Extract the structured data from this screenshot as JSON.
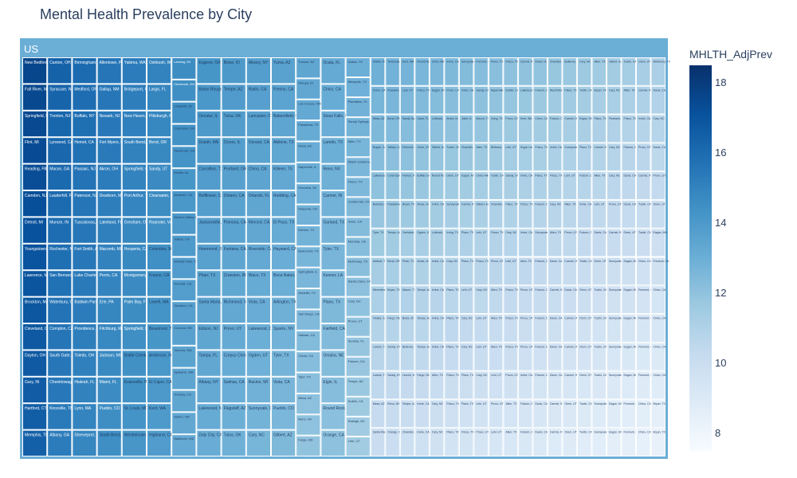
{
  "chart_data": {
    "type": "treemap",
    "title": "Mental Health Prevalence by City",
    "root_label": "US",
    "colorbar": {
      "title": "MHLTH_AdjPrev",
      "ticks": [
        8,
        10,
        12,
        14,
        16,
        18
      ],
      "range": [
        7.5,
        18.5
      ],
      "colorscale": [
        [
          0,
          "#f7fbff"
        ],
        [
          0.125,
          "#deebf7"
        ],
        [
          0.25,
          "#c6dbef"
        ],
        [
          0.375,
          "#9ecae1"
        ],
        [
          0.5,
          "#6baed6"
        ],
        [
          0.625,
          "#4292c6"
        ],
        [
          0.75,
          "#2171b5"
        ],
        [
          0.875,
          "#08519c"
        ],
        [
          1,
          "#08306b"
        ]
      ]
    },
    "columns": [
      {
        "value": 17.6,
        "label_size": 5,
        "cells": [
          "New Bedford, MA",
          "Fall River, MA",
          "Springfield, MA",
          "Flint, MI",
          "Reading, PA",
          "Camden, NJ",
          "Detroit, MI",
          "Youngstown, OH",
          "Lawrence, MA",
          "Brockton, MA",
          "Cleveland, OH",
          "Dayton, OH",
          "Gary, IN",
          "Hartford, CT",
          "Memphis, TN"
        ]
      },
      {
        "value": 16.4,
        "label_size": 5,
        "cells": [
          "Canton, OH",
          "Syracuse, NY",
          "Trenton, NJ",
          "Lynwood, CA",
          "Macon, GA",
          "Lauderhill, FL",
          "Muncie, IN",
          "Rochester, NY",
          "San Bernardino, CA",
          "Waterbury, CT",
          "Compton, CA",
          "South Gate, CA",
          "Cheektowaga, NY",
          "Knoxville, TN",
          "Albany, GA"
        ]
      },
      {
        "value": 16.0,
        "label_size": 5,
        "cells": [
          "Birmingham, AL",
          "Medford, OR",
          "Buffalo, NY",
          "Hemet, CA",
          "Passaic, NJ",
          "Paterson, NJ",
          "Tuscaloosa, AL",
          "Fort Smith, AR",
          "Lake Charles, LA",
          "Baldwin Park, CA",
          "Providence, RI",
          "Toledo, OH",
          "Hialeah, FL",
          "Lynn, MA",
          "Shreveport, LA"
        ]
      },
      {
        "value": 15.6,
        "label_size": 5,
        "cells": [
          "Allentown, PA",
          "Gallup, NM",
          "Newark, NJ",
          "Fort Myers, FL",
          "Akron, OH",
          "Dearborn, MI",
          "Lakeland, FL",
          "Macomb, MI",
          "Perris, CA",
          "Erie, PA",
          "Fitchburg, MA",
          "Jackson, MS",
          "Miami, FL",
          "Pueblo, CO",
          "South Bend, IN"
        ]
      },
      {
        "value": 15.3,
        "label_size": 5,
        "cells": [
          "Yakima, WA",
          "Bridgeport, CT",
          "New Haven, CT",
          "South Bend, IN",
          "Springfield, OH",
          "Port Arthur, TX",
          "Gresham, OR",
          "Hesperia, CA",
          "Montgomery, AL",
          "Palm Bay, FL",
          "Springfield, MO",
          "Battle Creek, MI",
          "Evansville, IN",
          "St. Louis, MO",
          "Westminster, CA"
        ]
      },
      {
        "value": 15.0,
        "label_size": 5,
        "cells": [
          "Oshkosh, WI",
          "Largo, FL",
          "Pittsburgh, PA",
          "Bend, OR",
          "Sandy, UT",
          "Clearwater, FL",
          "Roanoke, VA",
          "Columbia, SC",
          "Fresno, CA",
          "Lowell, MA",
          "Beaumont, TX",
          "Anderson, IN",
          "El Cajon, CA",
          "Kent, WA",
          "Highland, CA"
        ]
      },
      {
        "value": 14.6,
        "label_size": 4,
        "cells": [
          "Lansing, MI",
          "Cincinnati, OH",
          "Lafayette, IN",
          "Columbus, OH",
          "Savannah, GA",
          "Mobile, AL",
          "Modesto, CA",
          "Moreno Valley, CA",
          "Vallejo, CA",
          "Wichita Falls, TX",
          "Norwalk, CA",
          "Stockton, CA",
          "Concord, NH",
          "Tacoma, WA",
          "Spokane, WA",
          "Greeley, CO",
          "Salem, OR",
          "Baltimore, MD"
        ]
      },
      {
        "value": 14.2,
        "label_size": 5,
        "cells": [
          "Eugene, OR",
          "Baton Rouge, LA",
          "Decatur, IL",
          "Duluth, MN",
          "Carrollton, TX",
          "Bellflower, CA",
          "Jacksonville, FL",
          "Hammond, IN",
          "Pharr, TX",
          "Santa Maria, CA",
          "Edison, NJ",
          "Tampa, FL",
          "Albany, NY",
          "Lakewood, NJ",
          "Daly City, CA"
        ]
      },
      {
        "value": 14.0,
        "label_size": 5,
        "cells": [
          "Boise, ID",
          "Tempe, AZ",
          "Tulsa, OK",
          "Cicero, IL",
          "Portland, OR",
          "Ontario, CA",
          "Pomona, CA",
          "Fontana, CA",
          "Cranston, RI",
          "Richmond, VA",
          "Provo, UT",
          "Corpus Christi, TX",
          "Salinas, CA",
          "Flagstaff, AZ",
          "Tulsa, OK"
        ]
      },
      {
        "value": 13.8,
        "label_size": 5,
        "cells": [
          "Albany, NY",
          "Rialto, CA",
          "Lancaster, CA",
          "Oxnard, CA",
          "Chino, CA",
          "Orlando, FL",
          "Merced, CA",
          "Riverside, CA",
          "Waco, TX",
          "Vista, CA",
          "Lakewood, CO",
          "Ogden, UT",
          "Racine, WI",
          "Sunnyvale, CA",
          "Cary, NC"
        ]
      },
      {
        "value": 13.6,
        "label_size": 5,
        "cells": [
          "Yuma, AZ",
          "Fresno, CA",
          "Bakersfield, CA",
          "Abilene, TX",
          "Killeen, TX",
          "Redding, CA",
          "El Paso, TX",
          "Hayward, CA",
          "Boca Raton, FL",
          "Arlington, TX",
          "Sparks, NV",
          "Tyler, TX",
          "Vista, CA",
          "Pueblo, CO",
          "Gilbert, AZ"
        ]
      },
      {
        "value": 13.4,
        "label_size": 4,
        "cells": [
          "Tucson, AZ",
          "Nampa, ID",
          "Las Cruces, NM",
          "Pasadena, TX",
          "Mesa, AZ",
          "Naperville, IL",
          "Kenosha, WI",
          "Hesperia, CA",
          "Denton, TX",
          "Beaumont, TX",
          "Springfield, IL",
          "Amarillo, TX",
          "San Diego, CA",
          "Salinas, CA",
          "Clovis, CA",
          "Tyler, TX",
          "Mesa, AZ",
          "Reno, NV",
          "Fargo, ND"
        ]
      },
      {
        "value": 13.2,
        "label_size": 5,
        "cells": [
          "Ocala, FL",
          "Chico, CA",
          "Sioux Falls, SD",
          "Laredo, TX",
          "Reno, NV",
          "Carmel, IN",
          "Garland, TX",
          "Tyler, TX",
          "Kenner, LA",
          "Plano, TX",
          "Fairfield, CA",
          "Omaha, NE",
          "Elgin, IL",
          "Round Rock, TX",
          "Orange, CA"
        ]
      },
      {
        "value": 13.0,
        "label_size": 4,
        "cells": [
          "Dallas, TX",
          "Mesquite, TX",
          "Plantation, FL",
          "Sandy Springs, GA",
          "Allen, TX",
          "Miami Gardens, FL",
          "Frisco, TX",
          "Centennial, CO",
          "Irvine, CA",
          "Murrieta, CA",
          "McKinney, TX",
          "Santa Clara, CA",
          "Cary, NC",
          "Provo, UT",
          "Sunrise, FL",
          "Folsom, CA",
          "Tempe, AZ",
          "Dublin, CA",
          "Raleigh, NC",
          "Lehi, UT"
        ]
      }
    ],
    "subtree": {
      "value": 40,
      "row_cells": [
        [
          "Olathe, KS",
          "Temecula, CA",
          "Kent, WA",
          "Round Rock, TX",
          "Chino Hills, CA",
          "Irvine, CA",
          "Sunnyvale, CA",
          "Fremont, CA",
          "Plano, TX",
          "Frisco, TX",
          "Carmel, IN",
          "Ames, IA",
          "Chandler, AZ",
          "Bellevue, WA",
          "Cary, NC",
          "Allen, TX",
          "Gilbert, AZ",
          "Tustin, CA",
          "Orem, UT",
          "McKinney, TX"
        ],
        [
          "Chino, CA",
          "Pearland, TX",
          "Lehi, UT",
          "Frisco, TX",
          "Eagan, MN",
          "Provo, UT",
          "Irvine, CA",
          "Sandy, UT",
          "Naperville, IL",
          "Dublin, CA",
          "Lakewood, CO",
          "Folsom, CA",
          "Westminster, CO",
          "Plano, TX",
          "Tustin, CA",
          "Bryan, TX",
          "Cary, NC",
          "Allen, TX",
          "Carmel, IN",
          "Davis, CA"
        ],
        [
          "Mesa, AZ",
          "Bend, OR",
          "Sandy Springs, GA",
          "Davis, FL",
          "Lubbock, TX",
          "Ames, IA",
          "Joliet, IL",
          "Macon, TX",
          "Irving, TX",
          "Provo, UT",
          "Kent, WA",
          "Chino, CA",
          "Folsom, CA",
          "Carmel, IN",
          "Eagan, MN",
          "Plano, TX",
          "Pearland, TX",
          "Frisco, TX",
          "Irvine, CA",
          "Cary, NC"
        ],
        [
          "Nogas, CA",
          "Vallejo, CA",
          "Fremont, CA",
          "Orem, UT",
          "Gilbert, AZ",
          "Tustin, CA",
          "Chandler, AZ",
          "Allen, TX",
          "Bellevue, WA",
          "Lehi, UT",
          "Sugar Land, TX",
          "Frisco, TX",
          "Irvine, CA",
          "Sunnyvale, CA",
          "Plano, TX",
          "Carmel, IN",
          "Cary, NC",
          "Folsom, CA",
          "Provo, UT",
          "Davis, CA"
        ],
        [
          "Lakewood, CA",
          "Coral Springs, FL",
          "Fishers, IN",
          "Buffalo Grove, IL",
          "Round Rock, TX",
          "Orem, UT",
          "Eagan, MN",
          "Chino Hills, CA",
          "Tustin, CA",
          "Sandy, UT",
          "Irvine, CA",
          "Plano, TX",
          "Frisco, TX",
          "Lehi, UT",
          "Folsom, CA",
          "Allen, TX",
          "Cary, NC",
          "Davis, CA",
          "Carmel, IN",
          "Provo, UT"
        ],
        [
          "Burbank, CA",
          "Pasadena, CA",
          "Bryan, TX",
          "Ames, IA",
          "Irvine, CA",
          "Sunnyvale, CA",
          "Carmel, IN",
          "Gilbert, AZ",
          "Chandler, AZ",
          "Plano, TX",
          "Frisco, TX",
          "Folsom, CA",
          "Cary, NC",
          "Allen, TX",
          "Irvine, CA",
          "Lehi, UT",
          "Provo, UT",
          "Davis, CA",
          "Tustin, CA",
          "Orem, UT"
        ],
        [
          "Tyler, TX",
          "Tempe, AZ",
          "Carlsbad, CA",
          "Ogden, UT",
          "Lubbock, TX",
          "Irving, TX",
          "Plano, TX",
          "Lehi, UT",
          "Frisco, TX",
          "Cary, NC",
          "Irvine, CA",
          "Sunnyvale, CA",
          "Allen, TX",
          "Provo, UT",
          "Folsom, CA",
          "Davis, CA",
          "Carmel, IN",
          "Orem, UT",
          "Tustin, CA",
          "Eagan, MN"
        ],
        [
          "Abilene, TX",
          "Bend, OR",
          "Pharr, TX",
          "Ames, IA",
          "Irvine, CA",
          "Cary, NC",
          "Plano, TX",
          "Frisco, TX",
          "Provo, UT",
          "Lehi, UT",
          "Allen, TX",
          "Folsom, CA",
          "Davis, CA",
          "Carmel, IN",
          "Tustin, CA",
          "Orem, UT",
          "Sunnyvale, CA",
          "Eagan, MN",
          "Chino, CA",
          "Fremont, CA"
        ],
        [
          "Westminster, CA",
          "Bryan, TX",
          "Macon, TX",
          "Tempe, AZ",
          "Irvine, CA",
          "Plano, TX",
          "Lehi, UT",
          "Cary, NC",
          "Allen, TX",
          "Frisco, TX",
          "Provo, UT",
          "Folsom, CA",
          "Carmel, IN",
          "Davis, CA",
          "Orem, UT",
          "Tustin, CA",
          "Sunnyvale, CA",
          "Eagan, MN",
          "Fremont, CA",
          "Chino, CA"
        ],
        [
          "Visalia, CA",
          "Fargo, ND",
          "Boise, ID",
          "Tempe, AZ",
          "Irvine, CA",
          "Plano, TX",
          "Cary, NC",
          "Lehi, UT",
          "Allen, TX",
          "Frisco, TX",
          "Provo, UT",
          "Folsom, CA",
          "Davis, CA",
          "Carmel, IN",
          "Orem, UT",
          "Tustin, CA",
          "Sunnyvale, CA",
          "Eagan, MN",
          "Fremont, CA",
          "Chino, CA"
        ],
        [
          "Laredo, TX",
          "Sandy, UT",
          "Bellevue, WA",
          "Tempe, AZ",
          "Irvine, CA",
          "Plano, TX",
          "Cary, NC",
          "Lehi, UT",
          "Allen, TX",
          "Frisco, TX",
          "Provo, UT",
          "Folsom, CA",
          "Davis, CA",
          "Carmel, IN",
          "Orem, UT",
          "Tustin, CA",
          "Sunnyvale, CA",
          "Eagan, MN",
          "Fremont, CA",
          "Chino, CA"
        ],
        [
          "Laredo, TX",
          "Sandy, UT",
          "Lincoln, NE",
          "Fargo, ND",
          "Allen, TX",
          "Frisco, TX",
          "Plano, TX",
          "Cary, NC",
          "Lehi, UT",
          "Provo, UT",
          "Irvine, CA",
          "Folsom, CA",
          "Davis, CA",
          "Carmel, IN",
          "Orem, UT",
          "Tustin, CA",
          "Sunnyvale, CA",
          "Eagan, MN",
          "Fremont, CA",
          "Chino, CA"
        ],
        [
          "Mesa, AZ",
          "Reno, NV",
          "Tempe, AZ",
          "Irvine, CA",
          "Cary, NC",
          "Frisco, TX",
          "Plano, TX",
          "Lehi, UT",
          "Provo, UT",
          "Allen, TX",
          "Folsom, CA",
          "Davis, CA",
          "Carmel, IN",
          "Orem, UT",
          "Tustin, CA",
          "Sunnyvale, CA",
          "Eagan, MN",
          "Fremont, CA",
          "Chino, CA",
          "Bryan, TX"
        ],
        [
          "Santa Maria, CA",
          "Orange, CA",
          "Chandler, AZ",
          "Irvine, CA",
          "Cary, NC",
          "Plano, TX",
          "Frisco, TX",
          "Provo, UT",
          "Lehi, UT",
          "Allen, TX",
          "Folsom, CA",
          "Davis, CA",
          "Carmel, IN",
          "Orem, UT",
          "Tustin, CA",
          "Sunnyvale, CA",
          "Eagan, MN",
          "Fremont, CA",
          "Chino, CA",
          "Bryan, TX"
        ]
      ]
    }
  }
}
